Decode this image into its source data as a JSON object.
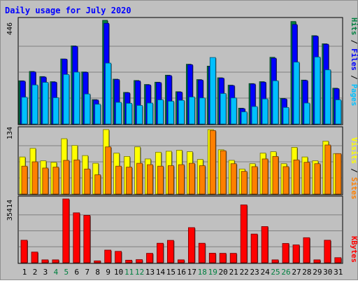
{
  "chart_data": [
    {
      "type": "bar",
      "title": "Daily usage for July 2020",
      "categories": [
        "1",
        "2",
        "3",
        "4",
        "5",
        "6",
        "7",
        "8",
        "9",
        "10",
        "11",
        "12",
        "13",
        "14",
        "15",
        "16",
        "17",
        "18",
        "19",
        "20",
        "21",
        "22",
        "23",
        "24",
        "25",
        "26",
        "27",
        "28",
        "29",
        "30",
        "31"
      ],
      "weekend_days": [
        "4",
        "5",
        "11",
        "12",
        "18",
        "19",
        "25",
        "26"
      ],
      "y_max_label": "446",
      "ylim": [
        0,
        446
      ],
      "side_label": [
        "Pages",
        "Files",
        "Hits"
      ],
      "grid": true,
      "series": [
        {
          "name": "Hits",
          "color": "#008040",
          "values": [
            186,
            226,
            204,
            182,
            280,
            336,
            224,
            105,
            446,
            193,
            136,
            187,
            170,
            180,
            210,
            139,
            257,
            191,
            249,
            199,
            167,
            68,
            174,
            182,
            287,
            110,
            441,
            189,
            380,
            345,
            154
          ]
        },
        {
          "name": "Files",
          "color": "#0000ff",
          "values": [
            184,
            224,
            202,
            180,
            279,
            334,
            222,
            103,
            433,
            191,
            134,
            185,
            168,
            178,
            208,
            137,
            255,
            189,
            247,
            197,
            165,
            66,
            172,
            180,
            283,
            108,
            428,
            187,
            378,
            343,
            152
          ]
        },
        {
          "name": "Pages",
          "color": "#00c0ff",
          "values": [
            115,
            168,
            179,
            113,
            213,
            223,
            129,
            85,
            262,
            93,
            89,
            80,
            90,
            104,
            98,
            102,
            116,
            112,
            286,
            131,
            112,
            52,
            75,
            108,
            186,
            71,
            266,
            90,
            288,
            233,
            104
          ]
        }
      ]
    },
    {
      "type": "bar",
      "y_max_label": "134",
      "ylim": [
        0,
        134
      ],
      "side_label": [
        "Sites",
        "Visits"
      ],
      "grid": true,
      "series": [
        {
          "name": "Visits",
          "color": "#ffff00",
          "values": [
            77,
            95,
            69,
            66,
            115,
            101,
            80,
            64,
            134,
            85,
            78,
            98,
            73,
            87,
            89,
            91,
            88,
            72,
            134,
            92,
            70,
            52,
            63,
            85,
            88,
            63,
            97,
            77,
            69,
            110,
            84
          ]
        },
        {
          "name": "Sites",
          "color": "#ff8000",
          "values": [
            58,
            67,
            54,
            56,
            70,
            71,
            52,
            40,
            98,
            58,
            56,
            64,
            61,
            58,
            59,
            61,
            64,
            59,
            132,
            90,
            63,
            47,
            57,
            73,
            78,
            57,
            71,
            66,
            63,
            102,
            84
          ]
        }
      ]
    },
    {
      "type": "bar",
      "y_max_label": "35414",
      "ylim": [
        0,
        35414
      ],
      "side_label": [
        "KBytes"
      ],
      "grid": true,
      "series": [
        {
          "name": "KBytes",
          "color": "#ff0000",
          "values": [
            12500,
            5900,
            1600,
            1600,
            35414,
            27700,
            26300,
            1000,
            7000,
            6300,
            1400,
            1700,
            5200,
            10800,
            12400,
            1600,
            19500,
            10800,
            5300,
            5200,
            5200,
            32100,
            15900,
            20100,
            1600,
            10700,
            9900,
            13900,
            1600,
            12500,
            2800
          ]
        }
      ]
    }
  ]
}
